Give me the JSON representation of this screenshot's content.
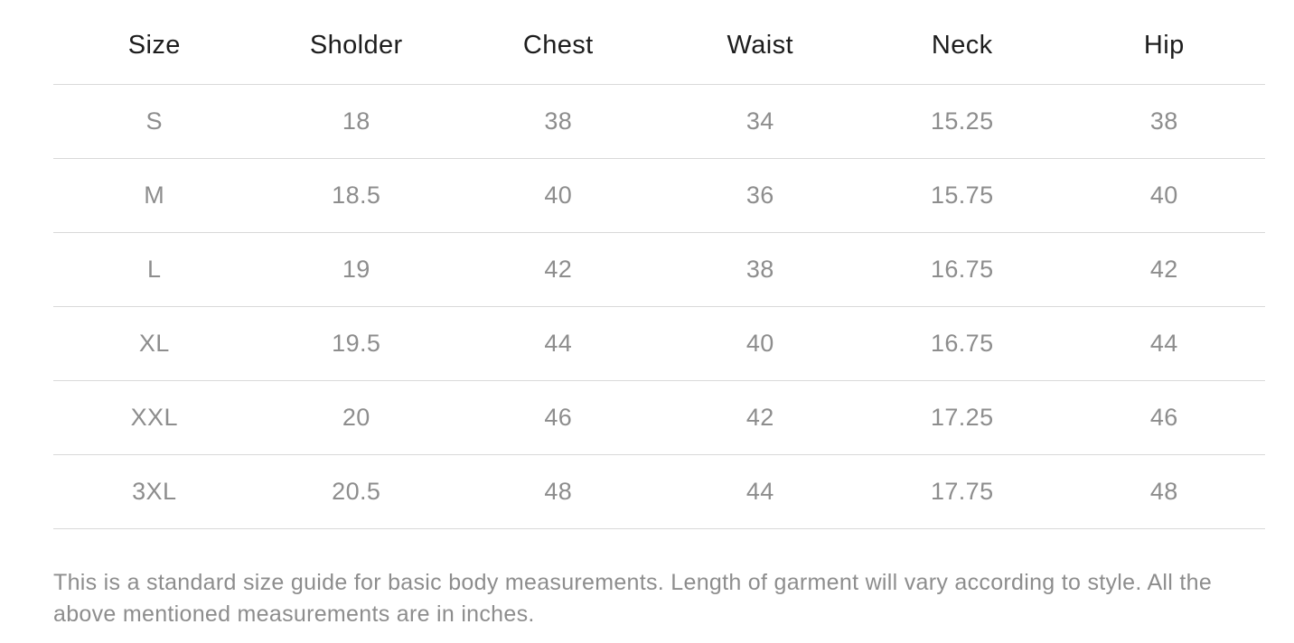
{
  "size_guide": {
    "table": {
      "headers": [
        "Size",
        "Sholder",
        "Chest",
        "Waist",
        "Neck",
        "Hip"
      ],
      "rows": [
        [
          "S",
          "18",
          "38",
          "34",
          "15.25",
          "38"
        ],
        [
          "M",
          "18.5",
          "40",
          "36",
          "15.75",
          "40"
        ],
        [
          "L",
          "19",
          "42",
          "38",
          "16.75",
          "42"
        ],
        [
          "XL",
          "19.5",
          "44",
          "40",
          "16.75",
          "44"
        ],
        [
          "XXL",
          "20",
          "46",
          "42",
          "17.25",
          "46"
        ],
        [
          "3XL",
          "20.5",
          "48",
          "44",
          "17.75",
          "48"
        ]
      ]
    },
    "note": {
      "line1": "This is a standard size guide for basic body measurements. Length of garment will vary according to style. All the",
      "line2": "above mentioned measurements are in inches."
    },
    "colors": {
      "header_text": "#1d1d1d",
      "value_text": "#8d8d8d",
      "divider": "#d9d9d9",
      "background": "#ffffff"
    }
  }
}
